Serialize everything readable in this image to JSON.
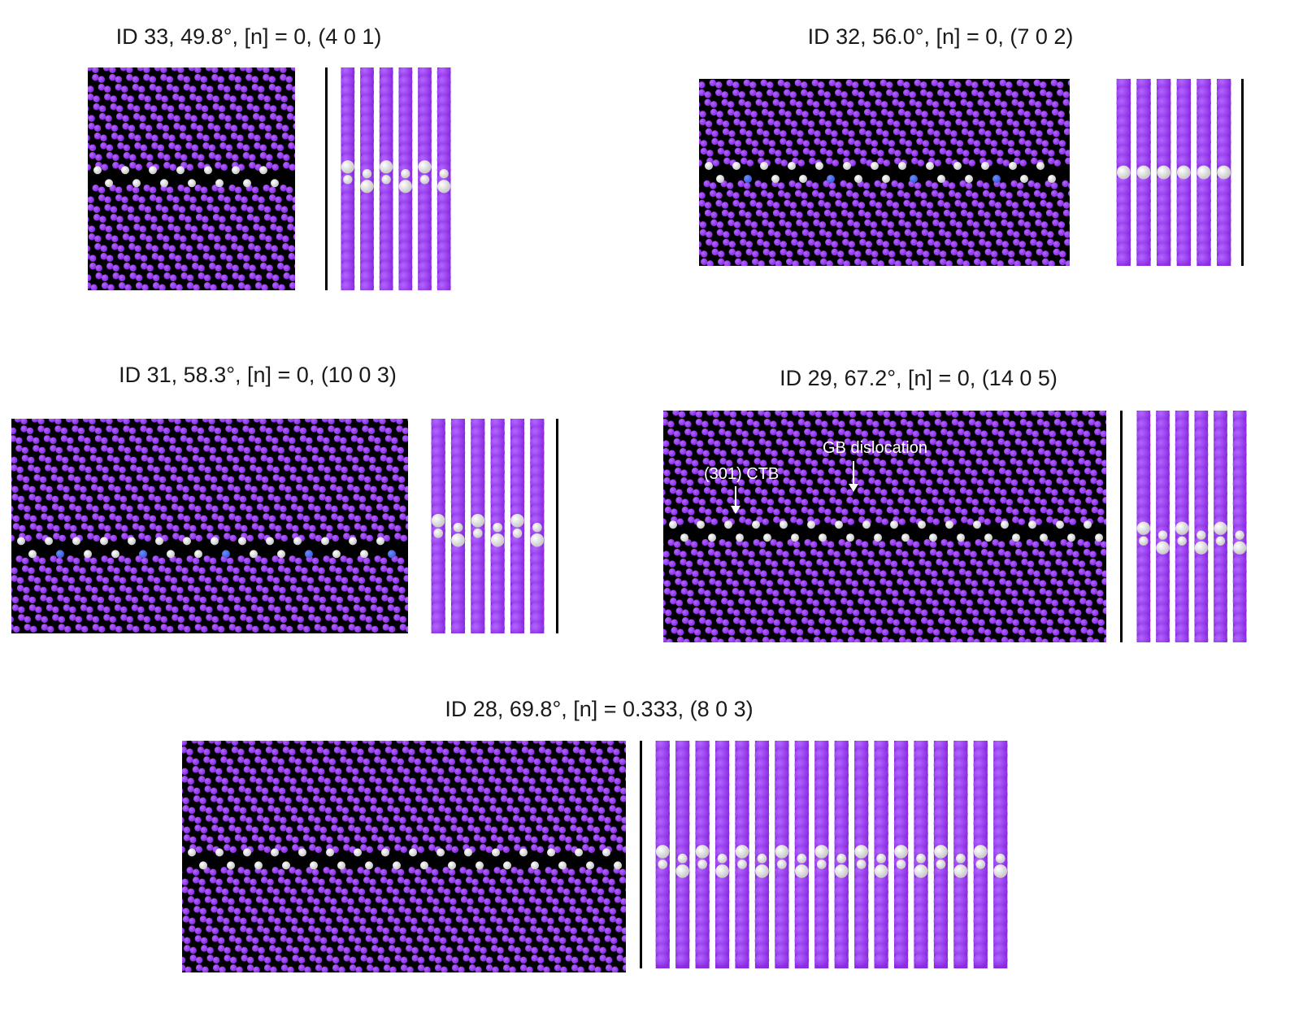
{
  "panels": [
    {
      "id": "p33",
      "title": "ID 33, 49.8°, [n] = 0, (4 0 1)"
    },
    {
      "id": "p32",
      "title": "ID 32, 56.0°, [n] = 0, (7 0 2)"
    },
    {
      "id": "p31",
      "title": "ID 31, 58.3°, [n] = 0, (10 0 3)"
    },
    {
      "id": "p29",
      "title": "ID 29, 67.2°, [n] = 0, (14 0 5)",
      "annotations": {
        "ctb": "(301) CTB",
        "gb": "GB dislocation"
      }
    },
    {
      "id": "p28",
      "title": "ID 28, 69.8°, [n] = 0.333, (8 0 3)"
    }
  ],
  "colors": {
    "atom": "#8a2be2",
    "atom_highlight": "#b266ff",
    "boundary_atom": "#f0f0f0",
    "defect_atom": "#3a5bd9",
    "background": "#000000"
  }
}
